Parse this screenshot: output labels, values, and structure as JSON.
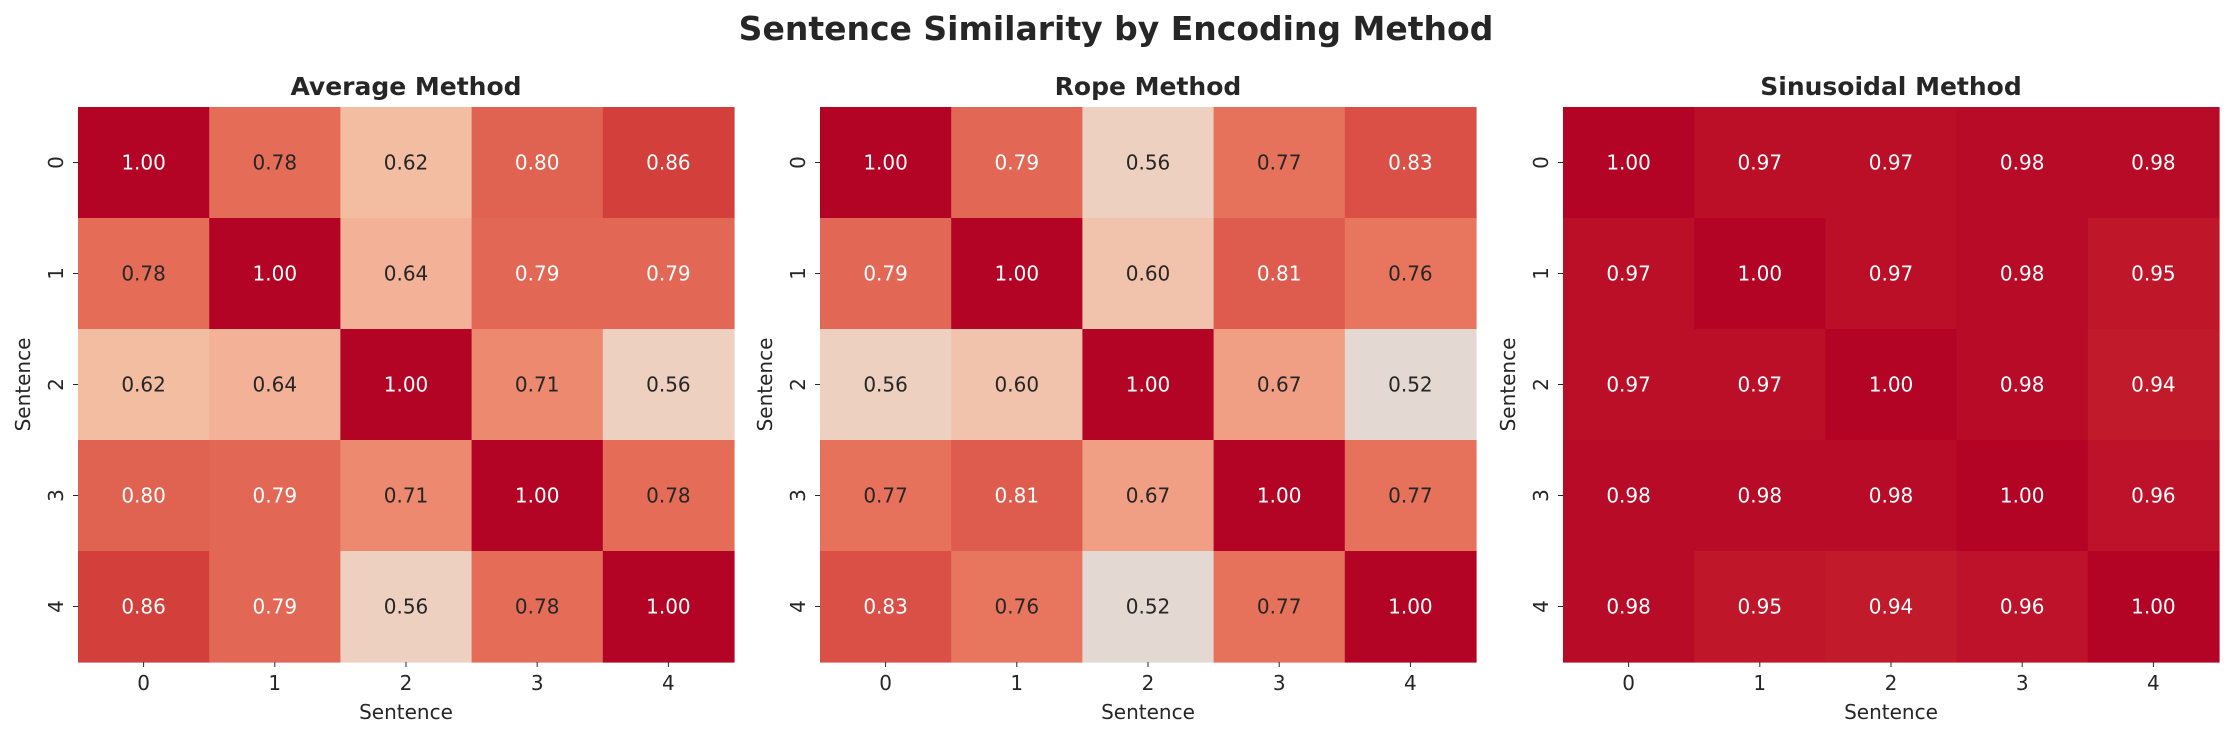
{
  "chart_data": {
    "type": "heatmap",
    "title": "Sentence Similarity by Encoding Method",
    "colormap": "coolwarm (upper half)",
    "value_format": "2 decimals",
    "panels": [
      {
        "title": "Average Method",
        "xlabel": "Sentence",
        "ylabel": "Sentence",
        "x_ticks": [
          "0",
          "1",
          "2",
          "3",
          "4"
        ],
        "y_ticks": [
          "0",
          "1",
          "2",
          "3",
          "4"
        ],
        "matrix": [
          [
            1.0,
            0.78,
            0.62,
            0.8,
            0.86
          ],
          [
            0.78,
            1.0,
            0.64,
            0.79,
            0.79
          ],
          [
            0.62,
            0.64,
            1.0,
            0.71,
            0.56
          ],
          [
            0.8,
            0.79,
            0.71,
            1.0,
            0.78
          ],
          [
            0.86,
            0.79,
            0.56,
            0.78,
            1.0
          ]
        ]
      },
      {
        "title": "Rope Method",
        "xlabel": "Sentence",
        "ylabel": "Sentence",
        "x_ticks": [
          "0",
          "1",
          "2",
          "3",
          "4"
        ],
        "y_ticks": [
          "0",
          "1",
          "2",
          "3",
          "4"
        ],
        "matrix": [
          [
            1.0,
            0.79,
            0.56,
            0.77,
            0.83
          ],
          [
            0.79,
            1.0,
            0.6,
            0.81,
            0.76
          ],
          [
            0.56,
            0.6,
            1.0,
            0.67,
            0.52
          ],
          [
            0.77,
            0.81,
            0.67,
            1.0,
            0.77
          ],
          [
            0.83,
            0.76,
            0.52,
            0.77,
            1.0
          ]
        ]
      },
      {
        "title": "Sinusoidal Method",
        "xlabel": "Sentence",
        "ylabel": "Sentence",
        "x_ticks": [
          "0",
          "1",
          "2",
          "3",
          "4"
        ],
        "y_ticks": [
          "0",
          "1",
          "2",
          "3",
          "4"
        ],
        "matrix": [
          [
            1.0,
            0.97,
            0.97,
            0.98,
            0.98
          ],
          [
            0.97,
            1.0,
            0.97,
            0.98,
            0.95
          ],
          [
            0.97,
            0.97,
            1.0,
            0.98,
            0.94
          ],
          [
            0.98,
            0.98,
            0.98,
            1.0,
            0.96
          ],
          [
            0.98,
            0.95,
            0.94,
            0.96,
            1.0
          ]
        ]
      }
    ]
  }
}
